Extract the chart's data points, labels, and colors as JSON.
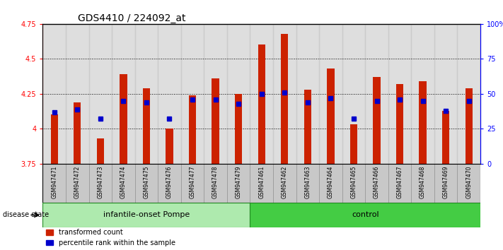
{
  "title": "GDS4410 / 224092_at",
  "samples": [
    "GSM947471",
    "GSM947472",
    "GSM947473",
    "GSM947474",
    "GSM947475",
    "GSM947476",
    "GSM947477",
    "GSM947478",
    "GSM947479",
    "GSM947461",
    "GSM947462",
    "GSM947463",
    "GSM947464",
    "GSM947465",
    "GSM947466",
    "GSM947467",
    "GSM947468",
    "GSM947469",
    "GSM947470"
  ],
  "bar_values": [
    4.1,
    4.19,
    3.93,
    4.39,
    4.29,
    4.0,
    4.24,
    4.36,
    4.25,
    4.6,
    4.68,
    4.28,
    4.43,
    4.03,
    4.37,
    4.32,
    4.34,
    4.13,
    4.29
  ],
  "blue_values": [
    4.12,
    4.14,
    4.07,
    4.2,
    4.19,
    4.07,
    4.21,
    4.21,
    4.18,
    4.25,
    4.26,
    4.19,
    4.22,
    4.07,
    4.2,
    4.21,
    4.2,
    4.13,
    4.2
  ],
  "bar_color": "#CC2200",
  "blue_marker_color": "#0000CC",
  "ymin": 3.75,
  "ymax": 4.75,
  "yticks": [
    3.75,
    4.0,
    4.25,
    4.5,
    4.75
  ],
  "right_yticks": [
    0,
    25,
    50,
    75,
    100
  ],
  "right_yticklabels": [
    "0",
    "25",
    "50",
    "75",
    "100%"
  ],
  "background_bar": "#C8C8C8",
  "pompe_color": "#AEEAAE",
  "control_color": "#44CC44",
  "legend_items": [
    "transformed count",
    "percentile rank within the sample"
  ],
  "disease_state_label": "disease state",
  "title_fontsize": 10,
  "tick_fontsize": 7,
  "group_label_fontsize": 8,
  "sample_fontsize": 5.5
}
